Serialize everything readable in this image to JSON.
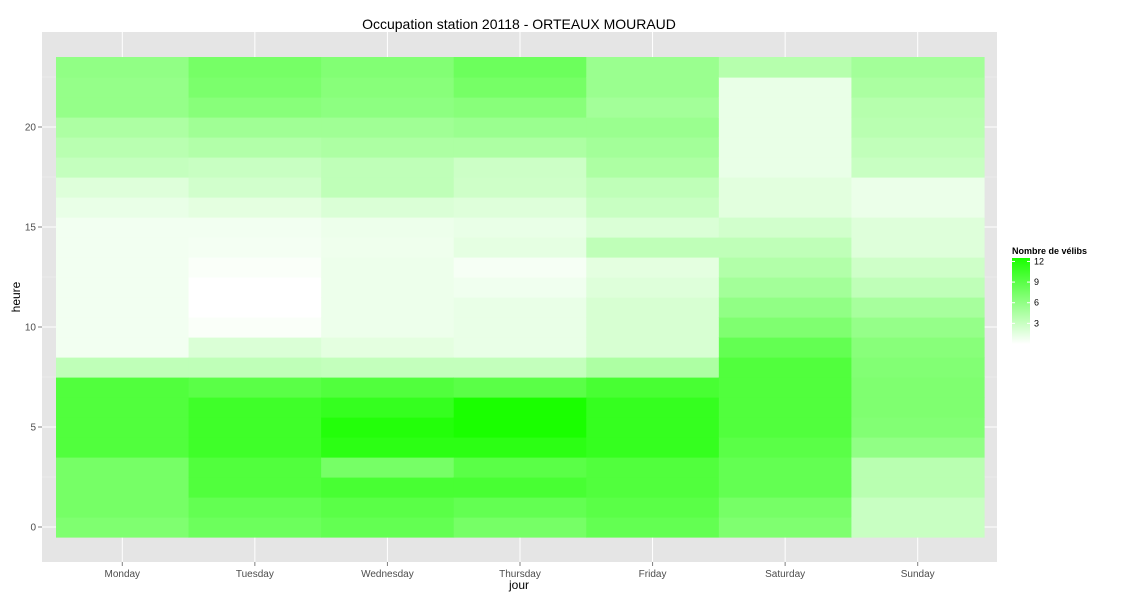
{
  "chart_data": {
    "type": "heatmap",
    "title": "Occupation station 20118 - ORTEAUX MOURAUD",
    "xlabel": "jour",
    "ylabel": "heure",
    "x_categories": [
      "Monday",
      "Tuesday",
      "Wednesday",
      "Thursday",
      "Friday",
      "Saturday",
      "Sunday"
    ],
    "y_range": [
      0,
      23
    ],
    "y_ticks": [
      0,
      5,
      10,
      15,
      20
    ],
    "grid": true,
    "legend": {
      "title": "Nombre de vélibs",
      "position": "right",
      "min": 0,
      "max": 12.5,
      "ticks": [
        3,
        6,
        9,
        12
      ],
      "low_color": "#ffffff",
      "high_color": "#1aff00"
    },
    "series": [
      {
        "name": "Monday",
        "values": [
          7,
          7.5,
          7.5,
          7.5,
          9.5,
          9.5,
          9.5,
          9.5,
          3.5,
          0.7,
          0.7,
          0.7,
          0.7,
          0.7,
          0.7,
          0.7,
          1.2,
          1.8,
          3.2,
          3.8,
          4.5,
          5.8,
          5.8,
          6
        ]
      },
      {
        "name": "Tuesday",
        "values": [
          8,
          8.5,
          9.5,
          9.5,
          10.5,
          10.5,
          10.5,
          9,
          3.5,
          2,
          0.3,
          0,
          0,
          0.3,
          0.6,
          0.7,
          1.5,
          2.5,
          3,
          4.2,
          5.2,
          6.5,
          7.2,
          7.5
        ]
      },
      {
        "name": "Wednesday",
        "values": [
          8.5,
          9,
          10,
          7.5,
          11.5,
          12,
          11,
          9.5,
          3.3,
          1.5,
          1,
          1,
          1,
          1,
          0.9,
          1,
          2,
          3.5,
          3.5,
          4.5,
          5.2,
          6.2,
          6.5,
          6.8
        ]
      },
      {
        "name": "Thursday",
        "values": [
          7.5,
          8.5,
          10,
          9,
          11.5,
          12.5,
          12.5,
          9,
          3.3,
          1.2,
          1.2,
          1.2,
          0.8,
          0.5,
          1.4,
          1.2,
          1.8,
          2.7,
          2.8,
          4.5,
          5.5,
          6.5,
          7.5,
          8
        ]
      },
      {
        "name": "Friday",
        "values": [
          8.5,
          9,
          9.5,
          9.5,
          11,
          11,
          11,
          10,
          4.5,
          2.2,
          2.2,
          2.2,
          1.8,
          1.5,
          3.5,
          2,
          3,
          3.5,
          4.5,
          5,
          5.5,
          5,
          5.5,
          5.5
        ]
      },
      {
        "name": "Saturday",
        "values": [
          7,
          7.5,
          8.5,
          8.5,
          9,
          9.5,
          9.5,
          9.5,
          9.5,
          8.5,
          7,
          6,
          5,
          4.2,
          3.5,
          2.5,
          1.6,
          1.6,
          1.2,
          1.2,
          1.2,
          1.2,
          1.2,
          4
        ]
      },
      {
        "name": "Sunday",
        "values": [
          3,
          3,
          3.8,
          3.8,
          6,
          6.8,
          7,
          7,
          6.8,
          6.5,
          5.8,
          4.8,
          3.5,
          2.7,
          1.8,
          1.8,
          1.1,
          1.1,
          3,
          3.4,
          3.8,
          4,
          4.6,
          5
        ]
      }
    ]
  }
}
